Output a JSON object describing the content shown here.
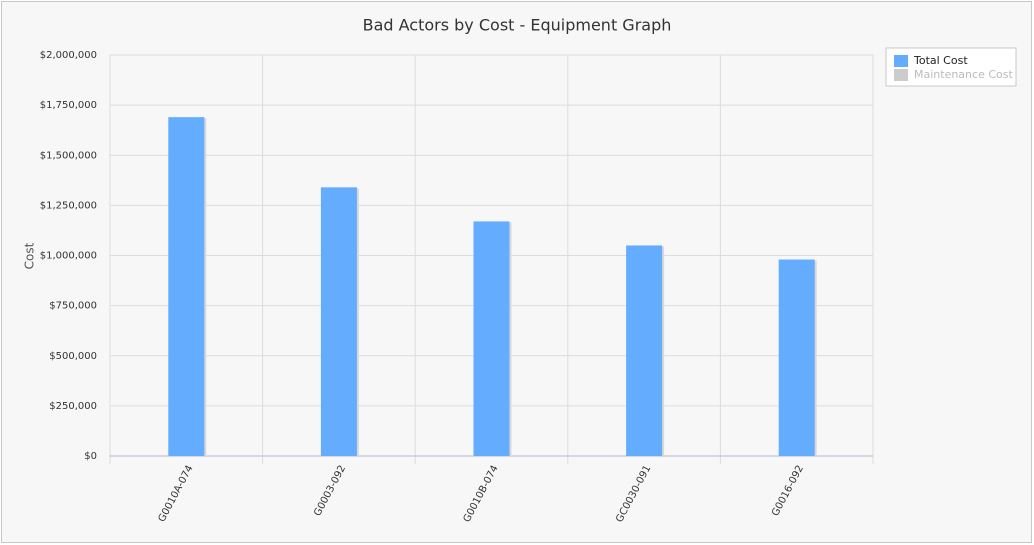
{
  "chart_data": {
    "type": "bar",
    "title": "Bad Actors by Cost - Equipment Graph",
    "y_label": "Cost",
    "categories": [
      "G0010A-074",
      "G0003-092",
      "G0010B-074",
      "GC0030-091",
      "G0016-092"
    ],
    "series": [
      {
        "name": "Total Cost",
        "color": "#63acfe",
        "values": [
          1690000,
          1340000,
          1170000,
          1050000,
          980000
        ]
      },
      {
        "name": "Maintenance Cost",
        "color": "#cccccc",
        "visible": false,
        "values": [
          null,
          null,
          null,
          null,
          null
        ]
      }
    ],
    "ylim": [
      0,
      2000000
    ],
    "yticks": [
      {
        "value": 0,
        "label": "$0"
      },
      {
        "value": 250000,
        "label": "$250,000"
      },
      {
        "value": 500000,
        "label": "$500,000"
      },
      {
        "value": 750000,
        "label": "$750,000"
      },
      {
        "value": 1000000,
        "label": "$1,000,000"
      },
      {
        "value": 1250000,
        "label": "$1,250,000"
      },
      {
        "value": 1500000,
        "label": "$1,500,000"
      },
      {
        "value": 1750000,
        "label": "$1,750,000"
      },
      {
        "value": 2000000,
        "label": "$2,000,000"
      }
    ],
    "grid": true,
    "legend": "top-right"
  }
}
